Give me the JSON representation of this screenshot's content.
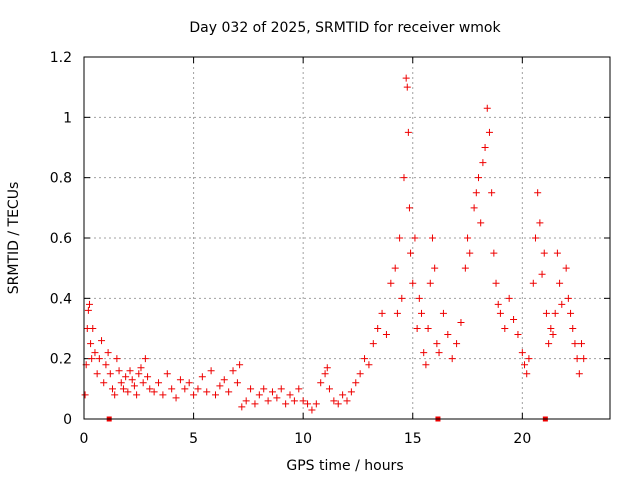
{
  "chart_data": {
    "type": "scatter",
    "title": "Day 032 of 2025, SRMTID for receiver wmok",
    "xlabel": "GPS time / hours",
    "ylabel": "SRMTID / TECUs",
    "xlim": [
      0,
      24
    ],
    "ylim": [
      0,
      1.2
    ],
    "xticks": [
      0,
      5,
      10,
      15,
      20
    ],
    "yticks": [
      0,
      0.2,
      0.4,
      0.6,
      0.8,
      1,
      1.2
    ],
    "xtick_labels": [
      "0",
      "5",
      "10",
      "15",
      "20"
    ],
    "ytick_labels": [
      "0",
      "0.2",
      "0.4",
      "0.6",
      "0.8",
      "1",
      "1.2"
    ],
    "grid": true,
    "marker": "+",
    "color": "#ee0000",
    "series": [
      {
        "name": "SRMTID",
        "points": [
          [
            0.05,
            0.08
          ],
          [
            0.1,
            0.18
          ],
          [
            0.15,
            0.3
          ],
          [
            0.2,
            0.36
          ],
          [
            0.25,
            0.38
          ],
          [
            0.3,
            0.25
          ],
          [
            0.35,
            0.2
          ],
          [
            0.4,
            0.3
          ],
          [
            0.5,
            0.22
          ],
          [
            0.6,
            0.15
          ],
          [
            0.7,
            0.2
          ],
          [
            0.8,
            0.26
          ],
          [
            0.9,
            0.12
          ],
          [
            1.0,
            0.18
          ],
          [
            1.1,
            0.22
          ],
          [
            1.2,
            0.15
          ],
          [
            1.3,
            0.1
          ],
          [
            1.4,
            0.08
          ],
          [
            1.5,
            0.2
          ],
          [
            1.6,
            0.16
          ],
          [
            1.7,
            0.12
          ],
          [
            1.8,
            0.1
          ],
          [
            1.9,
            0.14
          ],
          [
            2.0,
            0.09
          ],
          [
            2.1,
            0.16
          ],
          [
            2.2,
            0.13
          ],
          [
            2.3,
            0.11
          ],
          [
            2.4,
            0.08
          ],
          [
            2.5,
            0.15
          ],
          [
            2.6,
            0.17
          ],
          [
            2.7,
            0.12
          ],
          [
            2.8,
            0.2
          ],
          [
            2.9,
            0.14
          ],
          [
            3.0,
            0.1
          ],
          [
            3.2,
            0.09
          ],
          [
            3.4,
            0.12
          ],
          [
            3.6,
            0.08
          ],
          [
            3.8,
            0.15
          ],
          [
            4.0,
            0.1
          ],
          [
            4.2,
            0.07
          ],
          [
            4.4,
            0.13
          ],
          [
            4.6,
            0.1
          ],
          [
            4.8,
            0.12
          ],
          [
            5.0,
            0.08
          ],
          [
            5.2,
            0.1
          ],
          [
            5.4,
            0.14
          ],
          [
            5.6,
            0.09
          ],
          [
            5.8,
            0.16
          ],
          [
            6.0,
            0.08
          ],
          [
            6.2,
            0.11
          ],
          [
            6.4,
            0.13
          ],
          [
            6.6,
            0.09
          ],
          [
            6.8,
            0.16
          ],
          [
            7.0,
            0.12
          ],
          [
            7.1,
            0.18
          ],
          [
            7.2,
            0.04
          ],
          [
            7.4,
            0.06
          ],
          [
            7.6,
            0.1
          ],
          [
            7.8,
            0.05
          ],
          [
            8.0,
            0.08
          ],
          [
            8.2,
            0.1
          ],
          [
            8.4,
            0.06
          ],
          [
            8.6,
            0.09
          ],
          [
            8.8,
            0.07
          ],
          [
            9.0,
            0.1
          ],
          [
            9.2,
            0.05
          ],
          [
            9.4,
            0.08
          ],
          [
            9.6,
            0.06
          ],
          [
            9.8,
            0.1
          ],
          [
            10.0,
            0.06
          ],
          [
            10.2,
            0.05
          ],
          [
            10.4,
            0.03
          ],
          [
            10.6,
            0.05
          ],
          [
            10.8,
            0.12
          ],
          [
            11.0,
            0.15
          ],
          [
            11.1,
            0.17
          ],
          [
            11.2,
            0.1
          ],
          [
            11.4,
            0.06
          ],
          [
            11.6,
            0.05
          ],
          [
            11.8,
            0.08
          ],
          [
            12.0,
            0.06
          ],
          [
            12.2,
            0.09
          ],
          [
            12.4,
            0.12
          ],
          [
            12.6,
            0.15
          ],
          [
            12.8,
            0.2
          ],
          [
            13.0,
            0.18
          ],
          [
            13.2,
            0.25
          ],
          [
            13.4,
            0.3
          ],
          [
            13.6,
            0.35
          ],
          [
            13.8,
            0.28
          ],
          [
            14.0,
            0.45
          ],
          [
            14.2,
            0.5
          ],
          [
            14.3,
            0.35
          ],
          [
            14.4,
            0.6
          ],
          [
            14.5,
            0.4
          ],
          [
            14.6,
            0.8
          ],
          [
            14.7,
            1.13
          ],
          [
            14.75,
            1.1
          ],
          [
            14.8,
            0.95
          ],
          [
            14.85,
            0.7
          ],
          [
            14.9,
            0.55
          ],
          [
            15.0,
            0.45
          ],
          [
            15.1,
            0.6
          ],
          [
            15.2,
            0.3
          ],
          [
            15.3,
            0.4
          ],
          [
            15.4,
            0.35
          ],
          [
            15.5,
            0.22
          ],
          [
            15.6,
            0.18
          ],
          [
            15.7,
            0.3
          ],
          [
            15.8,
            0.45
          ],
          [
            15.9,
            0.6
          ],
          [
            16.0,
            0.5
          ],
          [
            16.1,
            0.25
          ],
          [
            16.2,
            0.22
          ],
          [
            16.4,
            0.35
          ],
          [
            16.6,
            0.28
          ],
          [
            16.8,
            0.2
          ],
          [
            17.0,
            0.25
          ],
          [
            17.2,
            0.32
          ],
          [
            17.4,
            0.5
          ],
          [
            17.5,
            0.6
          ],
          [
            17.6,
            0.55
          ],
          [
            17.8,
            0.7
          ],
          [
            17.9,
            0.75
          ],
          [
            18.0,
            0.8
          ],
          [
            18.1,
            0.65
          ],
          [
            18.2,
            0.85
          ],
          [
            18.3,
            0.9
          ],
          [
            18.4,
            1.03
          ],
          [
            18.5,
            0.95
          ],
          [
            18.6,
            0.75
          ],
          [
            18.7,
            0.55
          ],
          [
            18.8,
            0.45
          ],
          [
            18.9,
            0.38
          ],
          [
            19.0,
            0.35
          ],
          [
            19.2,
            0.3
          ],
          [
            19.4,
            0.4
          ],
          [
            19.6,
            0.33
          ],
          [
            19.8,
            0.28
          ],
          [
            20.0,
            0.22
          ],
          [
            20.1,
            0.18
          ],
          [
            20.2,
            0.15
          ],
          [
            20.3,
            0.2
          ],
          [
            20.5,
            0.45
          ],
          [
            20.6,
            0.6
          ],
          [
            20.7,
            0.75
          ],
          [
            20.8,
            0.65
          ],
          [
            20.9,
            0.48
          ],
          [
            21.0,
            0.55
          ],
          [
            21.1,
            0.35
          ],
          [
            21.2,
            0.25
          ],
          [
            21.3,
            0.3
          ],
          [
            21.4,
            0.28
          ],
          [
            21.5,
            0.35
          ],
          [
            21.6,
            0.55
          ],
          [
            21.7,
            0.45
          ],
          [
            21.8,
            0.38
          ],
          [
            22.0,
            0.5
          ],
          [
            22.1,
            0.4
          ],
          [
            22.2,
            0.35
          ],
          [
            22.3,
            0.3
          ],
          [
            22.4,
            0.25
          ],
          [
            22.5,
            0.2
          ],
          [
            22.6,
            0.15
          ],
          [
            22.7,
            0.25
          ],
          [
            22.8,
            0.2
          ]
        ]
      }
    ],
    "zero_marks_x": [
      1.15,
      16.15,
      21.05
    ]
  }
}
